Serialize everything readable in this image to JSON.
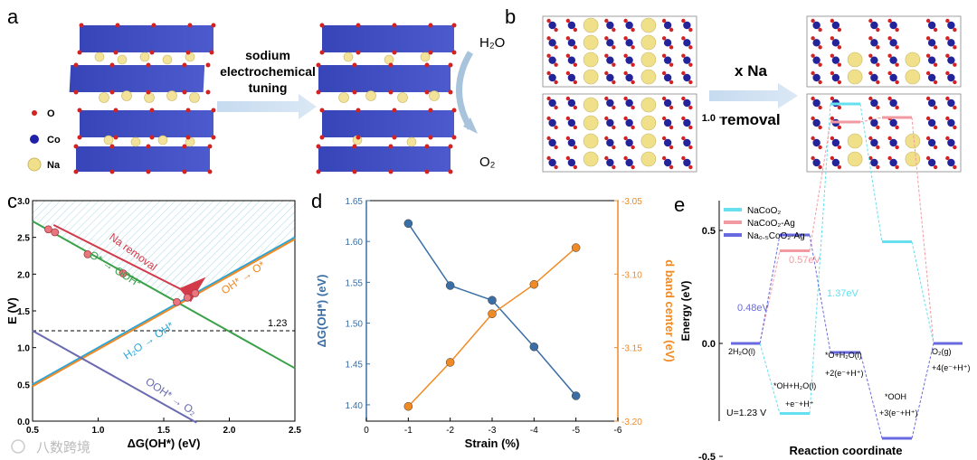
{
  "panel_a": {
    "letter": "a",
    "legend": [
      {
        "label": "O",
        "color": "#d22222"
      },
      {
        "label": "Co",
        "color": "#1f1fa8"
      },
      {
        "label": "Na",
        "color": "#f0e08a"
      }
    ],
    "arrow_text": [
      "sodium",
      "electrochemical",
      "tuning"
    ],
    "reaction_in": "H₂O",
    "reaction_out": "O₂"
  },
  "panel_b": {
    "letter": "b",
    "arrow_text": [
      "x Na",
      "removal"
    ]
  },
  "watermark": "八数跨境",
  "chart_data": [
    {
      "type": "line",
      "panel": "c",
      "xlabel": "ΔG(OH*) (eV)",
      "ylabel": "E (V)",
      "xlim": [
        0.5,
        2.5
      ],
      "ylim": [
        0.0,
        3.0
      ],
      "xticks": [
        "0.5",
        "1.0",
        "1.5",
        "2.0",
        "2.5"
      ],
      "yticks": [
        "0.0",
        "0.5",
        "1.0",
        "1.5",
        "2.0",
        "2.5",
        "3.0"
      ],
      "reference_line": {
        "y": 1.23,
        "label": "1.23"
      },
      "series": [
        {
          "name": "O* → OOH*",
          "color": "#3aa04a",
          "x": [
            0.5,
            2.5
          ],
          "y": [
            2.72,
            0.72
          ]
        },
        {
          "name": "H₂O → OH*",
          "color": "#2aa6d8",
          "x": [
            0.5,
            2.5
          ],
          "y": [
            0.5,
            2.5
          ]
        },
        {
          "name": "OH* → O*",
          "color": "#f08a24",
          "x": [
            0.5,
            2.5
          ],
          "y": [
            0.5,
            2.5
          ]
        },
        {
          "name": "OOH* → O₂",
          "color": "#6a6ab0",
          "x": [
            0.5,
            1.75
          ],
          "y": [
            1.23,
            -0.02
          ]
        }
      ],
      "points": [
        {
          "x": 0.62,
          "y": 2.61
        },
        {
          "x": 0.67,
          "y": 2.57
        },
        {
          "x": 0.92,
          "y": 2.27
        },
        {
          "x": 1.19,
          "y": 2.01
        },
        {
          "x": 1.6,
          "y": 1.62
        },
        {
          "x": 1.68,
          "y": 1.68
        },
        {
          "x": 1.74,
          "y": 1.74
        }
      ],
      "annotations": [
        "Na removal",
        "O* → OOH*",
        "OH* → O*",
        "H₂O → OH*",
        "OOH* → O₂"
      ]
    },
    {
      "type": "line",
      "panel": "d",
      "xlabel": "Strain (%)",
      "ylabel": "ΔG(OH*) (eV)",
      "y2label": "d band center (eV)",
      "categories": [
        "0",
        "-1",
        "-2",
        "-3",
        "-4",
        "-5",
        "-6"
      ],
      "xlim": [
        0,
        -6
      ],
      "ylim": [
        1.38,
        1.65
      ],
      "y2lim": [
        -3.2,
        -3.05
      ],
      "yticks": [
        "1.40",
        "1.45",
        "1.50",
        "1.55",
        "1.60",
        "1.65"
      ],
      "y2ticks": [
        "-3.05",
        "-3.10",
        "-3.15",
        "-3.20"
      ],
      "series": [
        {
          "name": "ΔG(OH*)",
          "axis": "left",
          "color": "#3a6ea5",
          "x": [
            -1,
            -2,
            -3,
            -4,
            -5
          ],
          "y": [
            1.622,
            1.546,
            1.528,
            1.471,
            1.411
          ]
        },
        {
          "name": "d band center",
          "axis": "right",
          "color": "#f08a24",
          "x": [
            -1,
            -2,
            -3,
            -4,
            -5
          ],
          "y": [
            -3.19,
            -3.16,
            -3.127,
            -3.107,
            -3.082
          ]
        }
      ]
    },
    {
      "type": "line",
      "panel": "e",
      "xlabel": "Reaction coordinate",
      "ylabel": "Energy (eV)",
      "ylim": [
        -0.6,
        1.2
      ],
      "yticks": [
        "-0.5",
        "0.0",
        "0.5",
        "1.0"
      ],
      "condition": "U=1.23 V",
      "states": [
        "2H₂O(l)",
        "*OH+H₂O(l) +e⁻+H⁺",
        "*O+H₂O(l) +2(e⁻+H⁺)",
        "*OOH +3(e⁻+H⁺)",
        "O₂(g) +4(e⁻+H⁺)"
      ],
      "series": [
        {
          "name": "NaCoO₂",
          "color": "#66e0ee",
          "values": [
            0.0,
            -0.31,
            1.06,
            0.45,
            0.0
          ]
        },
        {
          "name": "NaCoO₂-Ag",
          "color": "#f29aa2",
          "values": [
            0.0,
            0.41,
            0.98,
            1.0,
            0.0
          ]
        },
        {
          "name": "Na₀.₅CoO₂-Ag",
          "color": "#6a6ae0",
          "values": [
            0.0,
            0.48,
            -0.04,
            -0.42,
            0.0
          ]
        }
      ],
      "barrier_labels": [
        {
          "text": "0.48eV",
          "color": "#6a6ae0"
        },
        {
          "text": "0.57eV",
          "color": "#f29aa2"
        },
        {
          "text": "1.37eV",
          "color": "#66e0ee"
        }
      ]
    }
  ]
}
